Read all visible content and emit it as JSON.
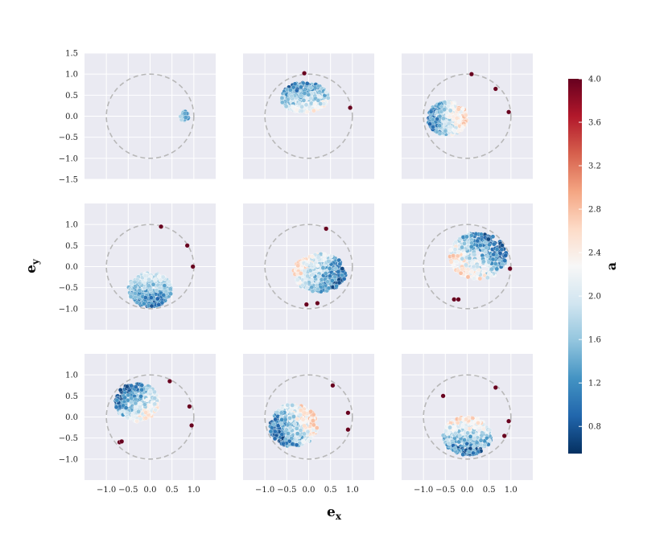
{
  "chart_data": {
    "type": "scatter",
    "layout": "3x3 panel grid of eccentricity-vector scatter plots",
    "xlabel": "e_x",
    "ylabel": "e_y",
    "xlim": [
      -1.5,
      1.5
    ],
    "ylim": [
      -1.5,
      1.5
    ],
    "xticks": [
      "−1.0",
      "−0.5",
      "0.0",
      "0.5",
      "1.0"
    ],
    "yticks_first_row": [
      "1.5",
      "1.0",
      "0.5",
      "0.0",
      "−0.5",
      "−1.0",
      "−1.5"
    ],
    "yticks_other_rows": [
      "1.0",
      "0.5",
      "0.0",
      "−0.5",
      "−1.0"
    ],
    "grid": true,
    "reference_circle": {
      "radius": 1.0,
      "style": "dashed",
      "color": "#b8b8b8"
    },
    "colorbar": {
      "label": "a",
      "range": [
        0.55,
        4.0
      ],
      "ticks": [
        "4.0",
        "3.6",
        "3.2",
        "2.8",
        "2.4",
        "2.0",
        "1.6",
        "1.2",
        "0.8"
      ],
      "colormap": [
        "#053061",
        "#2166ac",
        "#4393c3",
        "#92c5de",
        "#d1e5f0",
        "#f7f7f7",
        "#fddbc7",
        "#f4a582",
        "#d6604d",
        "#b2182b",
        "#67001f"
      ]
    },
    "panels": [
      {
        "id": "r1c1",
        "clusters": [
          {
            "cx": 0.78,
            "cy": 0.0,
            "rx": 0.1,
            "ry": 0.12,
            "n": 30,
            "a_min": 1.1,
            "a_max": 1.8
          }
        ],
        "outliers": []
      },
      {
        "id": "r1c2",
        "clusters": [
          {
            "cx": -0.1,
            "cy": 0.45,
            "rx": 0.55,
            "ry": 0.35,
            "n": 380,
            "a_min": 0.7,
            "a_max": 2.6,
            "gradient": "dense blue upper-left, fading to light red lower-right"
          }
        ],
        "outliers": [
          {
            "x": -0.1,
            "y": 1.02,
            "a": 4.0
          },
          {
            "x": 0.95,
            "y": 0.2,
            "a": 4.0
          }
        ]
      },
      {
        "id": "r1c3",
        "clusters": [
          {
            "cx": -0.45,
            "cy": -0.05,
            "rx": 0.45,
            "ry": 0.4,
            "n": 380,
            "a_min": 0.9,
            "a_max": 2.8,
            "gradient": "dense blue left, lighter to the right"
          }
        ],
        "outliers": [
          {
            "x": 0.1,
            "y": 1.0,
            "a": 4.0
          },
          {
            "x": 0.65,
            "y": 0.65,
            "a": 4.0
          },
          {
            "x": 0.95,
            "y": 0.1,
            "a": 4.0
          }
        ]
      },
      {
        "id": "r2c1",
        "clusters": [
          {
            "cx": 0.0,
            "cy": -0.55,
            "rx": 0.5,
            "ry": 0.4,
            "n": 360,
            "a_min": 0.8,
            "a_max": 2.2,
            "gradient": "dense blue at bottom, lighter upward"
          }
        ],
        "outliers": [
          {
            "x": 0.25,
            "y": 0.95,
            "a": 4.0
          },
          {
            "x": 0.85,
            "y": 0.5,
            "a": 4.0
          },
          {
            "x": 0.98,
            "y": 0.0,
            "a": 4.0
          }
        ]
      },
      {
        "id": "r2c2",
        "clusters": [
          {
            "cx": 0.25,
            "cy": -0.15,
            "rx": 0.6,
            "ry": 0.45,
            "n": 400,
            "a_min": 0.7,
            "a_max": 2.7,
            "gradient": "dense blue right, light red lower-left"
          }
        ],
        "outliers": [
          {
            "x": 0.4,
            "y": 0.9,
            "a": 4.0
          },
          {
            "x": -0.05,
            "y": -0.9,
            "a": 4.0
          },
          {
            "x": 0.2,
            "y": -0.87,
            "a": 4.0
          }
        ]
      },
      {
        "id": "r2c3",
        "clusters": [
          {
            "cx": 0.25,
            "cy": 0.25,
            "rx": 0.65,
            "ry": 0.55,
            "n": 400,
            "a_min": 0.7,
            "a_max": 2.8,
            "gradient": "dense blue upper-right, light red lower-left"
          }
        ],
        "outliers": [
          {
            "x": -0.3,
            "y": -0.78,
            "a": 4.0
          },
          {
            "x": -0.2,
            "y": -0.78,
            "a": 4.0
          },
          {
            "x": 0.98,
            "y": -0.05,
            "a": 4.0
          }
        ]
      },
      {
        "id": "r3c1",
        "clusters": [
          {
            "cx": -0.3,
            "cy": 0.35,
            "rx": 0.5,
            "ry": 0.45,
            "n": 360,
            "a_min": 0.7,
            "a_max": 2.6,
            "gradient": "dense blue upper-left, lighter lower-right"
          }
        ],
        "outliers": [
          {
            "x": 0.45,
            "y": 0.85,
            "a": 4.0
          },
          {
            "x": -0.7,
            "y": -0.6,
            "a": 4.0
          },
          {
            "x": -0.65,
            "y": -0.58,
            "a": 4.0
          },
          {
            "x": 0.9,
            "y": 0.25,
            "a": 4.0
          },
          {
            "x": 0.95,
            "y": -0.2,
            "a": 4.0
          }
        ]
      },
      {
        "id": "r3c2",
        "clusters": [
          {
            "cx": -0.35,
            "cy": -0.2,
            "rx": 0.55,
            "ry": 0.5,
            "n": 400,
            "a_min": 0.7,
            "a_max": 2.8,
            "gradient": "dense blue lower-left, lighter upper-right"
          }
        ],
        "outliers": [
          {
            "x": 0.55,
            "y": 0.75,
            "a": 4.0
          },
          {
            "x": 0.9,
            "y": 0.1,
            "a": 4.0
          },
          {
            "x": 0.9,
            "y": -0.3,
            "a": 4.0
          }
        ]
      },
      {
        "id": "r3c3",
        "clusters": [
          {
            "cx": 0.0,
            "cy": -0.45,
            "rx": 0.55,
            "ry": 0.45,
            "n": 400,
            "a_min": 0.7,
            "a_max": 2.8,
            "gradient": "dense blue at bottom, lighter upward"
          }
        ],
        "outliers": [
          {
            "x": -0.55,
            "y": 0.5,
            "a": 4.0
          },
          {
            "x": 0.65,
            "y": 0.7,
            "a": 4.0
          },
          {
            "x": 0.95,
            "y": -0.1,
            "a": 4.0
          },
          {
            "x": 0.85,
            "y": -0.45,
            "a": 4.0
          }
        ]
      }
    ]
  }
}
